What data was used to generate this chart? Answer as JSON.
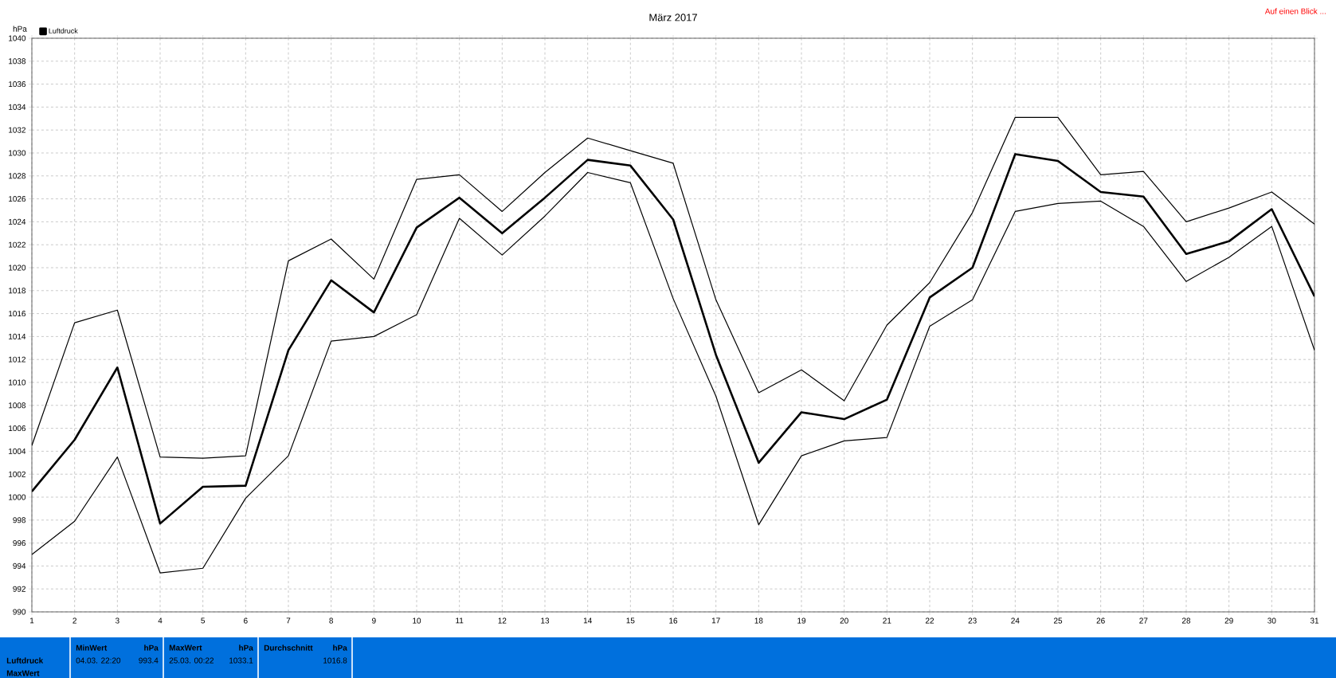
{
  "chart_data": {
    "type": "line",
    "title": "März 2017",
    "ylabel": "hPa",
    "x": [
      1,
      2,
      3,
      4,
      5,
      6,
      7,
      8,
      9,
      10,
      11,
      12,
      13,
      14,
      15,
      16,
      17,
      18,
      19,
      20,
      21,
      22,
      23,
      24,
      25,
      26,
      27,
      28,
      29,
      30,
      31
    ],
    "series": [
      {
        "color": "#000000",
        "values": [
          1004.5,
          1015.2,
          1016.3,
          1003.5,
          1003.4,
          1003.6,
          1020.6,
          1022.5,
          1019.0,
          1027.7,
          1028.1,
          1024.9,
          1028.3,
          1031.3,
          1030.2,
          1029.1,
          1017.2,
          1009.1,
          1011.1,
          1008.4,
          1015.0,
          1018.7,
          1024.8,
          1033.1,
          1033.1,
          1028.1,
          1028.4,
          1024.0,
          1025.2,
          1026.6,
          1023.8
        ]
      },
      {
        "name": "Luftdruck",
        "color": "#000000",
        "values": [
          1000.5,
          1005.0,
          1011.3,
          997.7,
          1000.9,
          1001.0,
          1012.8,
          1018.9,
          1016.1,
          1023.5,
          1026.1,
          1023.0,
          1026.1,
          1029.4,
          1028.9,
          1024.2,
          1012.4,
          1003.0,
          1007.4,
          1006.8,
          1008.5,
          1017.4,
          1020.0,
          1029.9,
          1029.3,
          1026.6,
          1026.2,
          1021.2,
          1022.3,
          1025.1,
          1017.5
        ]
      },
      {
        "color": "#000000",
        "values": [
          995.0,
          997.9,
          1003.5,
          993.4,
          993.8,
          999.9,
          1003.6,
          1013.6,
          1014.0,
          1015.9,
          1024.3,
          1021.1,
          1024.5,
          1028.3,
          1027.4,
          1017.3,
          1008.8,
          997.6,
          1003.6,
          1004.9,
          1005.2,
          1014.9,
          1017.2,
          1024.9,
          1025.6,
          1025.8,
          1023.6,
          1018.8,
          1020.9,
          1023.6,
          1012.8
        ]
      }
    ],
    "xlim": [
      1,
      31
    ],
    "ylim": [
      990,
      1040
    ],
    "xticks": [
      1,
      2,
      3,
      4,
      5,
      6,
      7,
      8,
      9,
      10,
      11,
      12,
      13,
      14,
      15,
      16,
      17,
      18,
      19,
      20,
      21,
      22,
      23,
      24,
      25,
      26,
      27,
      28,
      29,
      30,
      31
    ],
    "yticks": [
      990,
      992,
      994,
      996,
      998,
      1000,
      1002,
      1004,
      1006,
      1008,
      1010,
      1012,
      1014,
      1016,
      1018,
      1020,
      1022,
      1024,
      1026,
      1028,
      1030,
      1032,
      1034,
      1036,
      1038,
      1040
    ],
    "grid": true,
    "legend": "top left",
    "marker": "none",
    "line_style": "solid",
    "annotations": [
      "Auf einen Blick ...",
      "Luftdruck",
      "MaxWert",
      "MinWert",
      "hPa",
      "04.03.  22:20",
      "993.4",
      "MaxWert",
      "hPa",
      "25.03.  00:22",
      "1033.1",
      "Durchschnitt",
      "hPa",
      "1016.8"
    ]
  }
}
